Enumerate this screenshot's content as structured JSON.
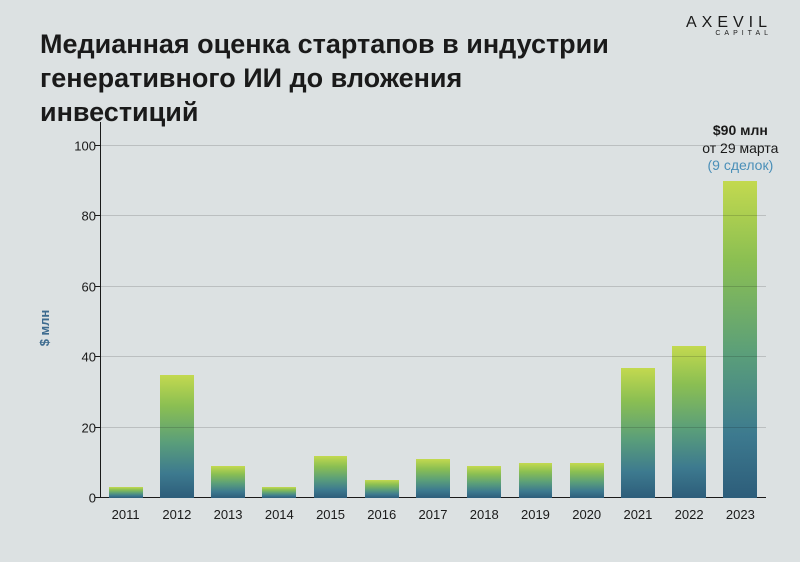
{
  "logo": {
    "main": "AXEVIL",
    "sub": "CAPITAL"
  },
  "title": "Медианная оценка стартапов в индустрии генеративного ИИ до вложения инвестиций",
  "chart": {
    "type": "bar",
    "y_axis_label": "$ млн",
    "y_ticks": [
      0,
      20,
      40,
      60,
      80,
      100
    ],
    "y_max": 105,
    "categories": [
      "2011",
      "2012",
      "2013",
      "2014",
      "2015",
      "2016",
      "2017",
      "2018",
      "2019",
      "2020",
      "2021",
      "2022",
      "2023"
    ],
    "values": [
      3,
      35,
      9,
      3,
      12,
      5,
      11,
      9,
      10,
      10,
      37,
      43,
      90
    ],
    "bar_width_ratio": 0.66,
    "bar_gradient_top": "#c3d94f",
    "bar_gradient_bottom": "#2d5d7a",
    "grid_color": "rgba(0,0,0,0.15)",
    "axis_color": "#1a1a1a",
    "background_color": "#dce1e2",
    "tick_fontsize": 13,
    "axis_label_color": "#3d6b8f",
    "annotation": {
      "line1": "$90 млн",
      "line2": "от 29 марта",
      "line3": "(9 сделок)",
      "color_line3": "#4a8fb8"
    }
  }
}
